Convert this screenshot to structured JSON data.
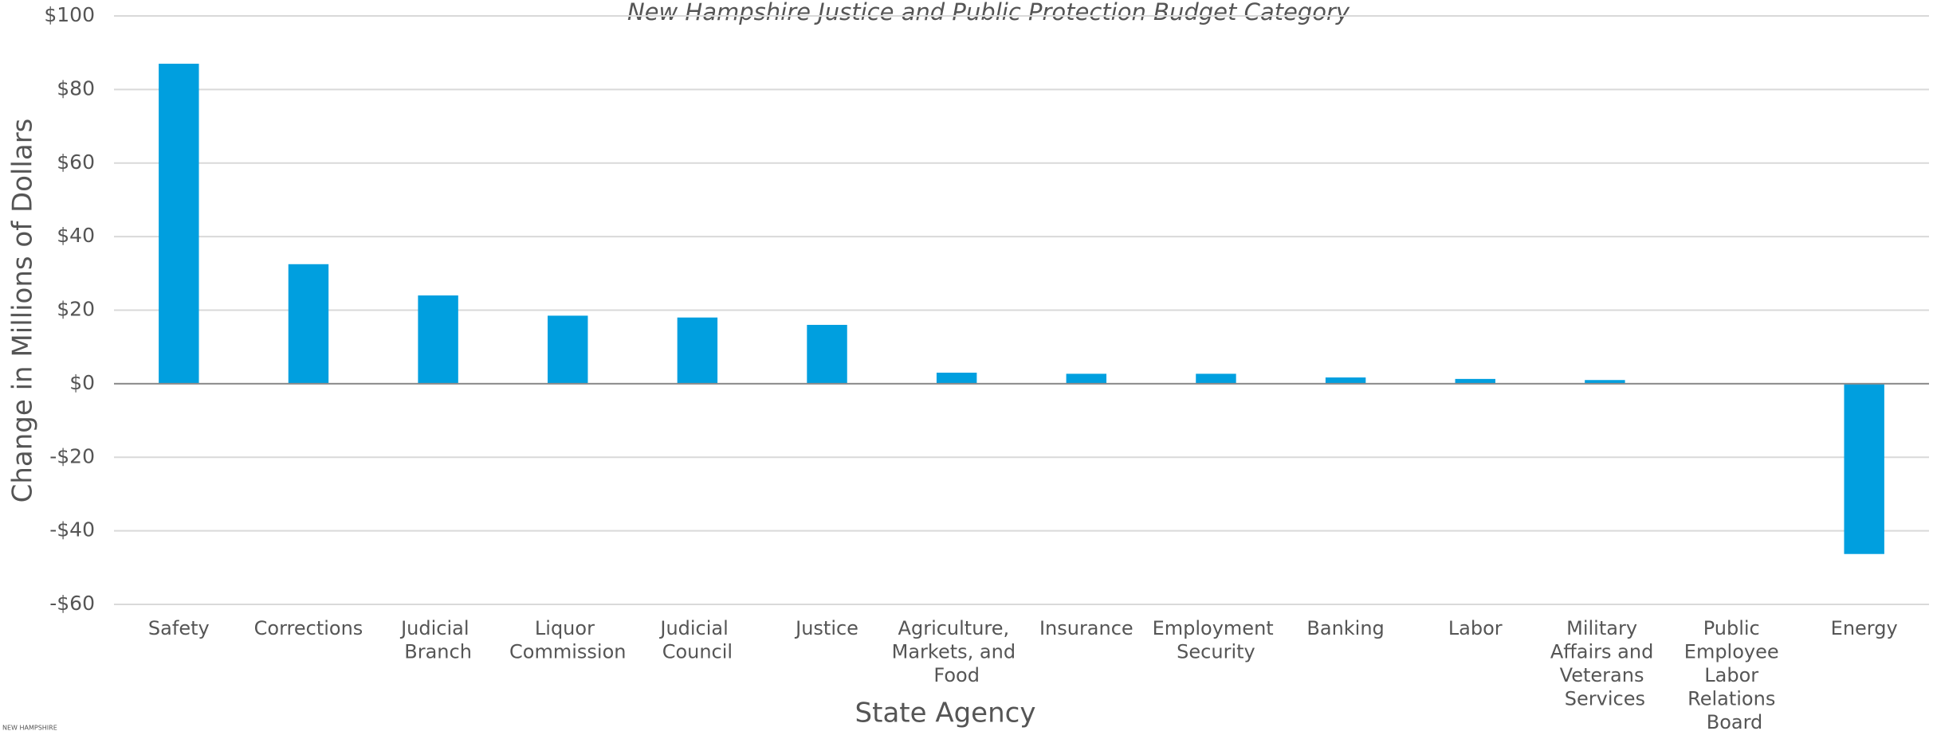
{
  "chart_data": {
    "type": "bar",
    "title": "New Hampshire Justice and Public Protection Budget Category",
    "y_label": "Change in Millions of Dollars",
    "x_label": "State Agency",
    "logo_text": "NEW HAMPSHIRE",
    "categories": [
      "Safety",
      "Corrections",
      "Judicial Branch",
      "Liquor Commission",
      "Judicial Council",
      "Justice",
      "Agriculture, Markets, and Food",
      "Insurance",
      "Employment Security",
      "Banking",
      "Labor",
      "Military Affairs and Veterans Services",
      "Public Employee Labor Relations Board",
      "Energy"
    ],
    "values": [
      87,
      32.5,
      24,
      18.5,
      18,
      16,
      3,
      2.7,
      2.7,
      1.7,
      1.3,
      1,
      0,
      -46.3
    ],
    "color": "#009fdf",
    "ylim": [
      -60,
      100
    ],
    "yticks": [
      {
        "value": -60,
        "label": "-$60"
      },
      {
        "value": -40,
        "label": "-$40"
      },
      {
        "value": -20,
        "label": "-$20"
      },
      {
        "value": 0,
        "label": "$0"
      },
      {
        "value": 20,
        "label": "$20"
      },
      {
        "value": 40,
        "label": "$40"
      },
      {
        "value": 60,
        "label": "$60"
      },
      {
        "value": 80,
        "label": "$80"
      },
      {
        "value": 100,
        "label": "$100"
      }
    ],
    "grid": true
  }
}
